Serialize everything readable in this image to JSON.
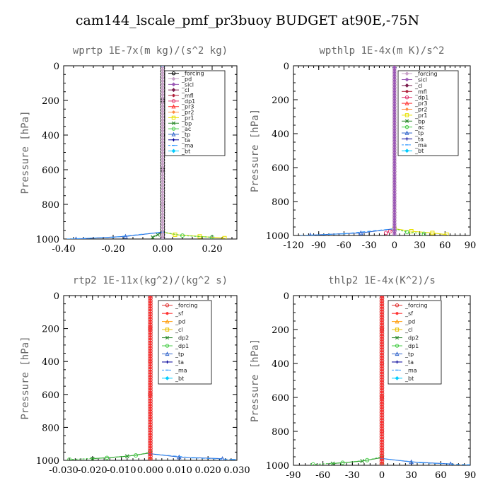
{
  "title": "cam144_lscale_pmf_pr3buoy  BUDGET at90E,-75N",
  "chart_data": [
    {
      "type": "line",
      "title": "wprtp   1E-7x(m kg)/(s^2 kg)",
      "ylabel": "Pressure [hPa]",
      "xlim": [
        -0.4,
        0.3
      ],
      "ylim": [
        1000,
        0
      ],
      "xticks": [
        -0.4,
        -0.2,
        0.0,
        0.2
      ],
      "xtick_labels": [
        "-0.40",
        "-0.20",
        "0.00",
        "0.20"
      ],
      "yticks": [
        0,
        200,
        400,
        600,
        800,
        1000
      ],
      "ytick_labels": [
        "0",
        "200",
        "400",
        "600",
        "800",
        "1000"
      ],
      "legend_position": "top-right",
      "series": [
        {
          "name": "_forcing",
          "color": "#000000",
          "marker": "circle",
          "x": [
            0,
            0,
            0,
            0,
            0,
            0,
            0
          ],
          "y": [
            0,
            200,
            400,
            600,
            800,
            960,
            1000
          ]
        },
        {
          "name": "_pd",
          "color": "#c8a2c8",
          "marker": "diamond",
          "x": [
            0,
            0
          ],
          "y": [
            0,
            1000
          ]
        },
        {
          "name": "_sicl",
          "color": "#9b59b6",
          "marker": "diamond",
          "x": [
            0,
            0
          ],
          "y": [
            0,
            1000
          ]
        },
        {
          "name": "_cl",
          "color": "#7b1f4f",
          "marker": "diamond",
          "x": [
            0,
            0
          ],
          "y": [
            0,
            1000
          ]
        },
        {
          "name": "_mfl",
          "color": "#b0203a",
          "marker": "star",
          "x": [
            0,
            0
          ],
          "y": [
            0,
            1000
          ]
        },
        {
          "name": "_dp1",
          "color": "#e0306a",
          "marker": "circle",
          "x": [
            0,
            0
          ],
          "y": [
            0,
            1000
          ]
        },
        {
          "name": "_pr3",
          "color": "#ff3030",
          "marker": "triangle",
          "x": [
            0,
            0
          ],
          "y": [
            0,
            1000
          ]
        },
        {
          "name": "_pr2",
          "color": "#ff8c40",
          "marker": "star",
          "x": [
            0,
            0
          ],
          "y": [
            0,
            1000
          ]
        },
        {
          "name": "_pr1",
          "color": "#e8e000",
          "marker": "square",
          "x": [
            0,
            0,
            0.05,
            0.15,
            0.25
          ],
          "y": [
            0,
            960,
            975,
            985,
            995
          ]
        },
        {
          "name": "_bp",
          "color": "#2e8b2e",
          "marker": "cross",
          "x": [
            0,
            0,
            -0.02,
            -0.04
          ],
          "y": [
            0,
            960,
            975,
            990
          ]
        },
        {
          "name": "_ac",
          "color": "#44cc44",
          "marker": "circle",
          "x": [
            0,
            0,
            0.08,
            0.2
          ],
          "y": [
            0,
            960,
            980,
            990
          ]
        },
        {
          "name": "_tp",
          "color": "#3366cc",
          "marker": "triangle",
          "x": [
            0,
            0,
            -0.15,
            -0.35
          ],
          "y": [
            0,
            960,
            985,
            1000
          ]
        },
        {
          "name": "_ta",
          "color": "#000099",
          "marker": "plus",
          "x": [
            0,
            0
          ],
          "y": [
            0,
            1000
          ]
        },
        {
          "name": "_ma",
          "color": "#3399ff",
          "marker": "dash",
          "x": [
            0,
            0,
            -0.2,
            -0.38
          ],
          "y": [
            0,
            960,
            990,
            1000
          ]
        },
        {
          "name": "_bt",
          "color": "#00ccff",
          "marker": "diamond",
          "x": [
            0,
            0
          ],
          "y": [
            0,
            1000
          ]
        }
      ]
    },
    {
      "type": "line",
      "title": "wpthlp   1E-4x(m K)/s^2",
      "ylabel": "Pressure [hPa]",
      "xlim": [
        -120,
        90
      ],
      "ylim": [
        1000,
        0
      ],
      "xticks": [
        -120,
        -90,
        -60,
        -30,
        0,
        30,
        60,
        90
      ],
      "xtick_labels": [
        "-120",
        "-90",
        "-60",
        "-30",
        "0",
        "30",
        "60",
        "90"
      ],
      "yticks": [
        0,
        200,
        400,
        600,
        800,
        1000
      ],
      "ytick_labels": [
        "0",
        "200",
        "400",
        "600",
        "800",
        "1000"
      ],
      "legend_position": "top-right",
      "series": [
        {
          "name": "_forcing",
          "color": "#c8a2c8",
          "marker": "diamond",
          "x": [
            0,
            0
          ],
          "y": [
            0,
            1000
          ]
        },
        {
          "name": "_sicl",
          "color": "#9b59b6",
          "marker": "diamond",
          "x": [
            0,
            0
          ],
          "y": [
            0,
            1000
          ]
        },
        {
          "name": "_cl",
          "color": "#7b1f4f",
          "marker": "diamond",
          "x": [
            0,
            0
          ],
          "y": [
            0,
            1000
          ]
        },
        {
          "name": "_mfl",
          "color": "#b0203a",
          "marker": "star",
          "x": [
            0,
            0
          ],
          "y": [
            0,
            1000
          ]
        },
        {
          "name": "_dp1",
          "color": "#e0306a",
          "marker": "circle",
          "x": [
            0,
            0,
            -5,
            -10
          ],
          "y": [
            0,
            960,
            975,
            985
          ]
        },
        {
          "name": "_pr3",
          "color": "#ff3030",
          "marker": "triangle",
          "x": [
            0,
            0
          ],
          "y": [
            0,
            1000
          ]
        },
        {
          "name": "_pr2",
          "color": "#ff8c40",
          "marker": "star",
          "x": [
            0,
            0
          ],
          "y": [
            0,
            1000
          ]
        },
        {
          "name": "_pr1",
          "color": "#e8e000",
          "marker": "square",
          "x": [
            0,
            0,
            20,
            45,
            62
          ],
          "y": [
            0,
            960,
            975,
            985,
            995
          ]
        },
        {
          "name": "_bp",
          "color": "#2e8b2e",
          "marker": "cross",
          "x": [
            0,
            0
          ],
          "y": [
            0,
            1000
          ]
        },
        {
          "name": "_ac",
          "color": "#44cc44",
          "marker": "circle",
          "x": [
            0,
            0,
            15,
            35
          ],
          "y": [
            0,
            960,
            980,
            990
          ]
        },
        {
          "name": "_tp",
          "color": "#3366cc",
          "marker": "triangle",
          "x": [
            0,
            0,
            -40,
            -100
          ],
          "y": [
            0,
            960,
            985,
            998
          ]
        },
        {
          "name": "_ta",
          "color": "#000099",
          "marker": "plus",
          "x": [
            0,
            0
          ],
          "y": [
            0,
            1000
          ]
        },
        {
          "name": "_ma",
          "color": "#3399ff",
          "marker": "dash",
          "x": [
            0,
            0,
            -60,
            -110
          ],
          "y": [
            0,
            960,
            990,
            1000
          ]
        },
        {
          "name": "_bt",
          "color": "#00ccff",
          "marker": "diamond",
          "x": [
            0,
            0
          ],
          "y": [
            0,
            1000
          ]
        }
      ]
    },
    {
      "type": "line",
      "title": "rtp2   1E-11x(kg^2)/(kg^2 s)",
      "ylabel": "Pressure [hPa]",
      "xlim": [
        -0.03,
        0.03
      ],
      "ylim": [
        1000,
        0
      ],
      "xticks": [
        -0.03,
        -0.02,
        -0.01,
        0.0,
        0.01,
        0.02,
        0.03
      ],
      "xtick_labels": [
        "-0.030",
        "-0.020",
        "-0.010",
        "0.000",
        "0.010",
        "0.020",
        "0.030"
      ],
      "yticks": [
        0,
        200,
        400,
        600,
        800,
        1000
      ],
      "ytick_labels": [
        "0",
        "200",
        "400",
        "600",
        "800",
        "1000"
      ],
      "legend_position": "top-right",
      "series": [
        {
          "name": "_forcing",
          "color": "#e03030",
          "marker": "circle",
          "x": [
            0,
            0,
            0,
            0,
            0,
            0,
            0
          ],
          "y": [
            0,
            200,
            400,
            600,
            800,
            960,
            1000
          ]
        },
        {
          "name": "_sf",
          "color": "#ff3030",
          "marker": "star",
          "x": [
            0,
            0
          ],
          "y": [
            0,
            1000
          ]
        },
        {
          "name": "_pd",
          "color": "#ff9900",
          "marker": "triangle",
          "x": [
            0,
            0
          ],
          "y": [
            0,
            1000
          ]
        },
        {
          "name": "_cl",
          "color": "#e8c000",
          "marker": "square",
          "x": [
            0,
            0
          ],
          "y": [
            0,
            1000
          ]
        },
        {
          "name": "_dp2",
          "color": "#2e8b2e",
          "marker": "cross",
          "x": [
            0,
            0,
            -0.008,
            -0.02
          ],
          "y": [
            0,
            955,
            975,
            990
          ]
        },
        {
          "name": "_dp1",
          "color": "#44cc44",
          "marker": "circle",
          "x": [
            0,
            0,
            -0.005,
            -0.015,
            -0.028
          ],
          "y": [
            0,
            950,
            970,
            985,
            995
          ]
        },
        {
          "name": "_tp",
          "color": "#3366cc",
          "marker": "triangle",
          "x": [
            0,
            0,
            0.01,
            0.025
          ],
          "y": [
            0,
            960,
            980,
            990
          ]
        },
        {
          "name": "_ta",
          "color": "#000099",
          "marker": "plus",
          "x": [
            0,
            0
          ],
          "y": [
            0,
            1000
          ]
        },
        {
          "name": "_ma",
          "color": "#3399ff",
          "marker": "dash",
          "x": [
            0,
            0,
            0.015,
            0.029
          ],
          "y": [
            0,
            960,
            985,
            995
          ]
        },
        {
          "name": "_bt",
          "color": "#00ccff",
          "marker": "diamond",
          "x": [
            0,
            0
          ],
          "y": [
            0,
            1000
          ]
        }
      ]
    },
    {
      "type": "line",
      "title": "thlp2   1E-4x(K^2)/s",
      "ylabel": "Pressure [hPa]",
      "xlim": [
        -90,
        90
      ],
      "ylim": [
        1000,
        0
      ],
      "xticks": [
        -90,
        -60,
        -30,
        0,
        30,
        60,
        90
      ],
      "xtick_labels": [
        "-90",
        "-60",
        "-30",
        "0",
        "30",
        "60",
        "90"
      ],
      "yticks": [
        0,
        200,
        400,
        600,
        800,
        1000
      ],
      "ytick_labels": [
        "0",
        "200",
        "400",
        "600",
        "800",
        "1000"
      ],
      "legend_position": "top-right",
      "series": [
        {
          "name": "_forcing",
          "color": "#e03030",
          "marker": "circle",
          "x": [
            0,
            0,
            0,
            0,
            0,
            0,
            0
          ],
          "y": [
            0,
            200,
            400,
            600,
            800,
            960,
            1000
          ]
        },
        {
          "name": "_sf",
          "color": "#ff3030",
          "marker": "star",
          "x": [
            0,
            0
          ],
          "y": [
            0,
            1000
          ]
        },
        {
          "name": "_pd",
          "color": "#ff9900",
          "marker": "triangle",
          "x": [
            0,
            0
          ],
          "y": [
            0,
            1000
          ]
        },
        {
          "name": "_cl",
          "color": "#e8c000",
          "marker": "square",
          "x": [
            0,
            0
          ],
          "y": [
            0,
            1000
          ]
        },
        {
          "name": "_dp2",
          "color": "#2e8b2e",
          "marker": "cross",
          "x": [
            0,
            0,
            -20,
            -50
          ],
          "y": [
            0,
            955,
            975,
            990
          ]
        },
        {
          "name": "_dp1",
          "color": "#44cc44",
          "marker": "circle",
          "x": [
            0,
            0,
            -15,
            -40,
            -70
          ],
          "y": [
            0,
            950,
            970,
            985,
            995
          ]
        },
        {
          "name": "_tp",
          "color": "#3366cc",
          "marker": "triangle",
          "x": [
            0,
            0,
            30,
            70
          ],
          "y": [
            0,
            960,
            980,
            992
          ]
        },
        {
          "name": "_ta",
          "color": "#000099",
          "marker": "plus",
          "x": [
            0,
            0
          ],
          "y": [
            0,
            1000
          ]
        },
        {
          "name": "_ma",
          "color": "#3399ff",
          "marker": "dash",
          "x": [
            0,
            0,
            40,
            88
          ],
          "y": [
            0,
            960,
            985,
            997
          ]
        },
        {
          "name": "_bt",
          "color": "#00ccff",
          "marker": "diamond",
          "x": [
            0,
            0
          ],
          "y": [
            0,
            1000
          ]
        }
      ]
    }
  ]
}
